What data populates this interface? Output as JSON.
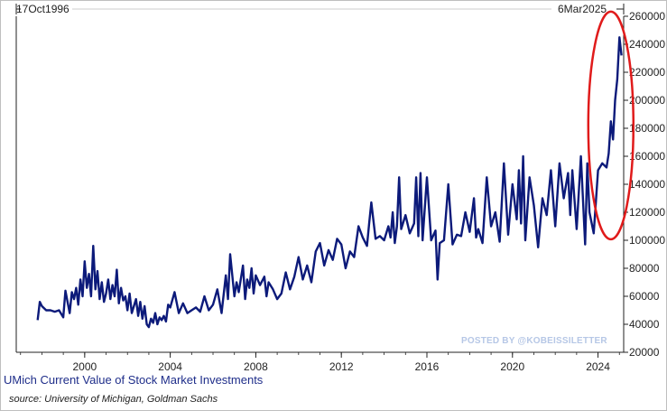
{
  "header": {
    "start_date": "17Oct1996",
    "end_date": "6Mar2025"
  },
  "title": "UMich Current Value of Stock Market Investments",
  "source": "source: University of Michigan, Goldman Sachs",
  "watermark": "POSTED BY @KOBEISSILETTER",
  "colors": {
    "line": "#0c1a7a",
    "highlight_circle": "#e01b1b",
    "title": "#1f2e8a"
  },
  "annotation": {
    "type": "ellipse",
    "color": "#e01b1b",
    "highlights": "2024-2025 surge"
  },
  "chart_data": {
    "type": "line",
    "title": "",
    "xlabel": "",
    "ylabel": "",
    "xlim": [
      1996.8,
      2025.2
    ],
    "ylim": [
      20000,
      260000
    ],
    "x_ticks": [
      2000,
      2004,
      2008,
      2012,
      2016,
      2020,
      2024
    ],
    "x_tick_labels": [
      "2000",
      "2004",
      "2008",
      "2012",
      "2016",
      "2020",
      "2024"
    ],
    "y_ticks": [
      20000,
      40000,
      60000,
      80000,
      100000,
      120000,
      140000,
      160000,
      180000,
      200000,
      220000,
      240000,
      260000
    ],
    "y_tick_labels": [
      "20000",
      "40000",
      "60000",
      "80000",
      "100000",
      "120000",
      "140000",
      "160000",
      "180000",
      "200000",
      "220000",
      "240000",
      "260000"
    ],
    "y_axis_position": "right",
    "grid": false,
    "legend": "none",
    "series": [
      {
        "x": [
          1997.8,
          1997.9,
          1998.0,
          1998.2,
          1998.4,
          1998.6,
          1998.8,
          1999.0,
          1999.1,
          1999.3,
          1999.4,
          1999.5,
          1999.6,
          1999.7,
          1999.8,
          1999.9,
          2000.0,
          2000.1,
          2000.2,
          2000.3,
          2000.4,
          2000.5,
          2000.6,
          2000.7,
          2000.8,
          2000.9,
          2001.0,
          2001.1,
          2001.2,
          2001.3,
          2001.4,
          2001.5,
          2001.6,
          2001.7,
          2001.8,
          2001.9,
          2002.0,
          2002.1,
          2002.2,
          2002.4,
          2002.5,
          2002.6,
          2002.7,
          2002.8,
          2002.9,
          2003.0,
          2003.1,
          2003.2,
          2003.3,
          2003.4,
          2003.5,
          2003.6,
          2003.7,
          2003.8,
          2003.9,
          2004.0,
          2004.2,
          2004.4,
          2004.6,
          2004.8,
          2005.0,
          2005.2,
          2005.4,
          2005.6,
          2005.8,
          2006.0,
          2006.2,
          2006.4,
          2006.6,
          2006.7,
          2006.8,
          2007.0,
          2007.1,
          2007.2,
          2007.4,
          2007.5,
          2007.6,
          2007.7,
          2007.8,
          2007.9,
          2008.0,
          2008.2,
          2008.4,
          2008.5,
          2008.6,
          2008.8,
          2009.0,
          2009.2,
          2009.4,
          2009.6,
          2009.8,
          2010.0,
          2010.2,
          2010.4,
          2010.6,
          2010.8,
          2011.0,
          2011.2,
          2011.4,
          2011.6,
          2011.8,
          2012.0,
          2012.2,
          2012.4,
          2012.6,
          2012.8,
          2013.0,
          2013.2,
          2013.3,
          2013.4,
          2013.6,
          2013.8,
          2014.0,
          2014.2,
          2014.3,
          2014.4,
          2014.5,
          2014.6,
          2014.7,
          2014.8,
          2015.0,
          2015.2,
          2015.4,
          2015.5,
          2015.6,
          2015.7,
          2015.8,
          2016.0,
          2016.2,
          2016.4,
          2016.5,
          2016.6,
          2016.8,
          2017.0,
          2017.2,
          2017.4,
          2017.6,
          2017.8,
          2018.0,
          2018.2,
          2018.3,
          2018.4,
          2018.6,
          2018.8,
          2019.0,
          2019.2,
          2019.4,
          2019.6,
          2019.8,
          2020.0,
          2020.2,
          2020.3,
          2020.4,
          2020.5,
          2020.6,
          2020.8,
          2021.0,
          2021.2,
          2021.4,
          2021.6,
          2021.8,
          2022.0,
          2022.2,
          2022.4,
          2022.6,
          2022.7,
          2022.8,
          2023.0,
          2023.2,
          2023.4,
          2023.5,
          2023.6,
          2023.8,
          2024.0,
          2024.2,
          2024.4,
          2024.5,
          2024.6,
          2024.7,
          2024.8,
          2024.9,
          2025.0,
          2025.1
        ],
        "y": [
          43000,
          56000,
          53000,
          50000,
          50000,
          49000,
          50000,
          45000,
          64000,
          48000,
          63000,
          58000,
          66000,
          54000,
          72000,
          60000,
          85000,
          66000,
          76000,
          60000,
          96000,
          65000,
          78000,
          58000,
          70000,
          56000,
          62000,
          72000,
          58000,
          68000,
          60000,
          79000,
          55000,
          66000,
          57000,
          60000,
          50000,
          62000,
          48000,
          58000,
          46000,
          56000,
          44000,
          53000,
          40000,
          38000,
          44000,
          41000,
          48000,
          40000,
          45000,
          43000,
          46000,
          42000,
          54000,
          52000,
          63000,
          48000,
          55000,
          48000,
          50000,
          52000,
          49000,
          60000,
          50000,
          54000,
          65000,
          48000,
          75000,
          58000,
          90000,
          60000,
          70000,
          63000,
          82000,
          58000,
          72000,
          66000,
          80000,
          62000,
          75000,
          68000,
          74000,
          60000,
          70000,
          65000,
          58000,
          62000,
          77000,
          65000,
          74000,
          88000,
          72000,
          82000,
          70000,
          92000,
          98000,
          82000,
          93000,
          86000,
          101000,
          97000,
          80000,
          92000,
          88000,
          110000,
          102000,
          96000,
          112000,
          127000,
          101000,
          103000,
          100000,
          110000,
          102000,
          120000,
          98000,
          110000,
          145000,
          108000,
          118000,
          105000,
          112000,
          145000,
          103000,
          148000,
          100000,
          145000,
          100000,
          107000,
          72000,
          98000,
          100000,
          140000,
          97000,
          104000,
          103000,
          120000,
          106000,
          130000,
          102000,
          108000,
          98000,
          145000,
          110000,
          120000,
          99000,
          155000,
          104000,
          140000,
          115000,
          150000,
          112000,
          160000,
          100000,
          145000,
          125000,
          95000,
          130000,
          118000,
          150000,
          110000,
          155000,
          130000,
          148000,
          118000,
          150000,
          108000,
          160000,
          97000,
          155000,
          120000,
          105000,
          150000,
          155000,
          152000,
          162000,
          185000,
          172000,
          200000,
          215000,
          245000,
          232000
        ]
      }
    ]
  }
}
